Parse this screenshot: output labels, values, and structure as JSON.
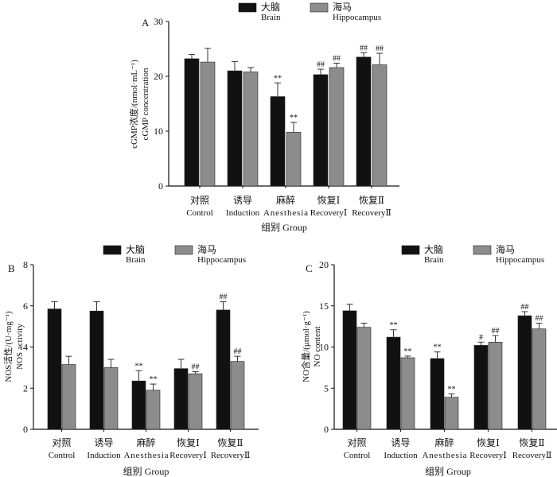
{
  "chart_data": [
    {
      "type": "bar",
      "panel_label": "A",
      "ylabel_cn": "cGMP浓度/(nmol·mL⁻¹)",
      "ylabel_en": "cGMP concentration",
      "xlabel": "组别 Group",
      "ylim": [
        0,
        30
      ],
      "yticks": [
        0,
        10,
        20,
        30
      ],
      "categories_cn": [
        "对照",
        "诱导",
        "麻醉",
        "恢复Ⅰ",
        "恢复Ⅱ"
      ],
      "categories_en": [
        "Control",
        "Induction",
        "Anesthesia",
        "RecoveryⅠ",
        "RecoveryⅡ"
      ],
      "legend": [
        {
          "cn": "大脑",
          "en": "Brain",
          "color": "#111111"
        },
        {
          "cn": "海马",
          "en": "Hippocampus",
          "color": "#8c8c8c"
        }
      ],
      "series": [
        {
          "name": "Brain",
          "values": [
            23.2,
            21.0,
            16.3,
            20.3,
            23.5
          ],
          "errors": [
            0.8,
            1.7,
            2.5,
            1.0,
            0.8
          ],
          "marks": [
            "",
            "",
            "**",
            "##",
            "##"
          ]
        },
        {
          "name": "Hippocampus",
          "values": [
            22.6,
            20.8,
            9.8,
            21.6,
            22.1
          ],
          "errors": [
            2.5,
            0.8,
            1.8,
            0.8,
            2.1
          ],
          "marks": [
            "",
            "",
            "**",
            "##",
            "##"
          ]
        }
      ]
    },
    {
      "type": "bar",
      "panel_label": "B",
      "ylabel_cn": "NOS活性/(U·mg⁻¹)",
      "ylabel_en": "NOS activity",
      "xlabel": "组别 Group",
      "ylim": [
        0,
        8
      ],
      "yticks": [
        0,
        2,
        4,
        6,
        8
      ],
      "categories_cn": [
        "对照",
        "诱导",
        "麻醉",
        "恢复Ⅰ",
        "恢复Ⅱ"
      ],
      "categories_en": [
        "Control",
        "Induction",
        "Anesthesia",
        "RecoveryⅠ",
        "RecoveryⅡ"
      ],
      "legend": [
        {
          "cn": "大脑",
          "en": "Brain",
          "color": "#111111"
        },
        {
          "cn": "海马",
          "en": "Hippocampus",
          "color": "#8c8c8c"
        }
      ],
      "series": [
        {
          "name": "Brain",
          "values": [
            5.85,
            5.75,
            2.35,
            2.95,
            5.8
          ],
          "errors": [
            0.35,
            0.45,
            0.5,
            0.45,
            0.4
          ],
          "marks": [
            "",
            "",
            "**",
            "",
            "##"
          ]
        },
        {
          "name": "Hippocampus",
          "values": [
            3.15,
            3.0,
            1.9,
            2.7,
            3.3
          ],
          "errors": [
            0.4,
            0.4,
            0.3,
            0.1,
            0.25
          ],
          "marks": [
            "",
            "",
            "**",
            "##",
            "##"
          ]
        }
      ]
    },
    {
      "type": "bar",
      "panel_label": "C",
      "ylabel_cn": "NO含量/(μmol·g⁻¹)",
      "ylabel_en": "NO content",
      "xlabel": "组别 Group",
      "ylim": [
        0,
        20
      ],
      "yticks": [
        0,
        5,
        10,
        15,
        20
      ],
      "categories_cn": [
        "对照",
        "诱导",
        "麻醉",
        "恢复Ⅰ",
        "恢复Ⅱ"
      ],
      "categories_en": [
        "Control",
        "Induction",
        "Anesthesia",
        "RecoveryⅠ",
        "RecoveryⅡ"
      ],
      "legend": [
        {
          "cn": "大脑",
          "en": "Brain",
          "color": "#111111"
        },
        {
          "cn": "海马",
          "en": "Hippocampus",
          "color": "#8c8c8c"
        }
      ],
      "series": [
        {
          "name": "Brain",
          "values": [
            14.4,
            11.2,
            8.6,
            10.2,
            13.8
          ],
          "errors": [
            0.8,
            0.9,
            0.8,
            0.4,
            0.5
          ],
          "marks": [
            "",
            "**",
            "**",
            "#",
            "##"
          ]
        },
        {
          "name": "Hippocampus",
          "values": [
            12.4,
            8.7,
            3.9,
            10.6,
            12.2
          ],
          "errors": [
            0.5,
            0.2,
            0.4,
            0.8,
            0.7
          ],
          "marks": [
            "",
            "**",
            "**",
            "##",
            "##"
          ]
        }
      ]
    }
  ]
}
